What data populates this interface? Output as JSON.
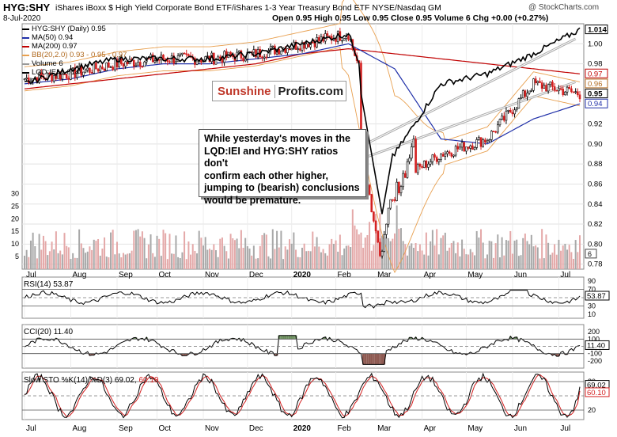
{
  "header": {
    "symbol": "HYG:SHY",
    "description": "iShares iBoxx $ High Yield Corporate Bond ETF/iShares 1-3 Year Treasury Bond ETF  NYSE/Nasdaq GM",
    "watermark": "@ StockCharts.com",
    "date": "8-Jul-2020",
    "ohlc": "Open 0.95  High 0.95  Low 0.95  Close 0.95  Volume 6  Chg +0.00 (+0.27%)"
  },
  "logo": {
    "part1": "Sunshine",
    "part2": "Profits.com"
  },
  "annotation": {
    "lines": [
      "While yesterday's moves in the",
      "LQD:IEI and HYG:SHY ratios don't",
      "confirm each other higher,",
      "jumping to (bearish) conclusions",
      "would be premature."
    ]
  },
  "legend": [
    {
      "label": "HYG:SHY (Daily) 0.95",
      "color": "#000000"
    },
    {
      "label": "MA(50) 0.94",
      "color": "#1f2fa8"
    },
    {
      "label": "MA(200) 0.97",
      "color": "#c00000"
    },
    {
      "label": "BB(20,2.0) 0.93 - 0.95 - 0.97",
      "color": "#e8a050"
    },
    {
      "label": "Volume 6",
      "color": "#999999"
    },
    {
      "label": "LQD:IEI 1.014",
      "color": "#000000"
    }
  ],
  "colors": {
    "up": "#000000",
    "down": "#d42020",
    "ma50": "#1f2fa8",
    "ma200": "#c00000",
    "bb": "#e8a050",
    "lqd": "#000000",
    "vol_up": "#a8a8a8",
    "vol_down": "#e4a8a8",
    "osc_pos": "#6c8f5e",
    "osc_neg": "#8e5a52",
    "stoch_k": "#000000",
    "stoch_d": "#d42020"
  },
  "x_ticks": [
    "Jul",
    "Aug",
    "Sep",
    "Oct",
    "Nov",
    "Dec",
    "2020",
    "Feb",
    "Mar",
    "Apr",
    "May",
    "Jun",
    "Jul"
  ],
  "indicators": {
    "rsi": {
      "label": "RSI(14) 53.87",
      "value_label": "53.87",
      "ticks": [
        "90",
        "70",
        "50",
        "30",
        "10"
      ]
    },
    "cci": {
      "label": "CCI(20) 11.40",
      "value_label": "11.40",
      "ticks": [
        "200",
        "100",
        "-100",
        "-200"
      ]
    },
    "sto": {
      "label_k": "Slow STO %K(14) %D(3) 69.02,",
      "label_d": "60.10",
      "k_label": "69.02",
      "d_label": "60.10",
      "ticks": [
        "80",
        "20"
      ]
    }
  },
  "chart_data": [
    {
      "type": "line",
      "title": "HYG:SHY (Daily) 0.95",
      "y_axis_labels": [
        "1.014",
        "1.00",
        "0.98",
        "0.97",
        "0.96",
        "0.95",
        "0.94",
        "0.92",
        "0.90",
        "0.88",
        "0.86",
        "0.84",
        "0.82",
        "0.80",
        "0.78"
      ],
      "ylim": [
        0.775,
        1.02
      ],
      "x": [
        "Jul",
        "Aug",
        "Sep",
        "Oct",
        "Nov",
        "Dec",
        "2020",
        "Feb",
        "Mar",
        "Apr",
        "May",
        "Jun",
        "Jul"
      ],
      "series": [
        {
          "name": "HYG:SHY",
          "values": [
            0.965,
            0.97,
            0.98,
            0.985,
            0.985,
            0.99,
            1.0,
            1.01,
            0.86,
            0.89,
            0.905,
            0.96,
            0.95
          ]
        },
        {
          "name": "MA(50)",
          "values": [
            0.96,
            0.965,
            0.975,
            0.98,
            0.98,
            0.985,
            0.99,
            1.0,
            0.975,
            0.905,
            0.9,
            0.925,
            0.94
          ]
        },
        {
          "name": "MA(200)",
          "values": [
            0.955,
            0.96,
            0.965,
            0.97,
            0.975,
            0.98,
            0.99,
            0.995,
            0.99,
            0.985,
            0.98,
            0.975,
            0.97
          ]
        },
        {
          "name": "LQD:IEI",
          "values": [
            0.96,
            0.975,
            0.985,
            0.985,
            0.985,
            0.99,
            1.0,
            1.01,
            0.89,
            0.96,
            0.97,
            0.99,
            1.014
          ]
        }
      ],
      "volume_axis": [
        "30",
        "25",
        "20",
        "15",
        "10",
        "5"
      ],
      "volume_label": "6"
    },
    {
      "type": "line",
      "title": "RSI(14) 53.87",
      "ylim": [
        0,
        100
      ],
      "ticks": [
        10,
        30,
        50,
        70,
        90
      ],
      "last": 53.87
    },
    {
      "type": "area",
      "title": "CCI(20) 11.40",
      "ylim": [
        -300,
        300
      ],
      "ticks": [
        -200,
        -100,
        100,
        200
      ],
      "last": 11.4
    },
    {
      "type": "line",
      "title": "Slow STO %K(14) %D(3)",
      "ylim": [
        0,
        100
      ],
      "ticks": [
        20,
        80
      ],
      "series": [
        {
          "name": "%K",
          "last": 69.02
        },
        {
          "name": "%D",
          "last": 60.1
        }
      ]
    }
  ]
}
